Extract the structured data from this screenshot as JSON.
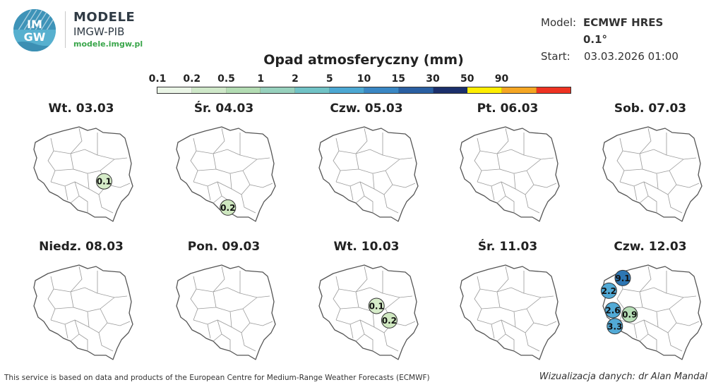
{
  "branding": {
    "logo_text": "IMGW",
    "name": "MODELE",
    "subtitle": "IMGW-PIB",
    "url": "modele.imgw.pl"
  },
  "model_info": {
    "model_label": "Model:",
    "model_value": "ECMWF HRES 0.1°",
    "start_label": "Start:",
    "start_value": "03.03.2026 01:00"
  },
  "legend": {
    "title": "Opad atmosferyczny (mm)",
    "ticks": [
      "0.1",
      "0.2",
      "0.5",
      "1",
      "2",
      "5",
      "10",
      "15",
      "30",
      "50",
      "90"
    ],
    "colors": [
      "#eaf5e6",
      "#cfe8c9",
      "#b3dcb3",
      "#97d1bd",
      "#71c3c6",
      "#4ca8d3",
      "#3a87c4",
      "#2a5fa2",
      "#1b2f6b",
      "#ffee00",
      "#f5a623",
      "#ee3322"
    ]
  },
  "panels": [
    {
      "title": "Wt. 03.03",
      "markers": [
        {
          "value": "0.1",
          "x": 0.71,
          "y": 0.56,
          "color": "#d6ecc9"
        }
      ]
    },
    {
      "title": "Śr. 04.03",
      "markers": [
        {
          "value": "0.2",
          "x": 0.52,
          "y": 0.87,
          "color": "#cfe8c0"
        }
      ]
    },
    {
      "title": "Czw. 05.03",
      "markers": []
    },
    {
      "title": "Pt. 06.03",
      "markers": []
    },
    {
      "title": "Sob. 07.03",
      "markers": []
    },
    {
      "title": "Niedz. 08.03",
      "markers": []
    },
    {
      "title": "Pon. 09.03",
      "markers": []
    },
    {
      "title": "Wt. 10.03",
      "markers": [
        {
          "value": "0.1",
          "x": 0.58,
          "y": 0.4,
          "color": "#d6ecc9"
        },
        {
          "value": "0.2",
          "x": 0.71,
          "y": 0.57,
          "color": "#cfe8c0"
        }
      ]
    },
    {
      "title": "Śr. 11.03",
      "markers": []
    },
    {
      "title": "Czw. 12.03",
      "markers": [
        {
          "value": "9.1",
          "x": 0.2,
          "y": 0.07,
          "color": "#2d76b3"
        },
        {
          "value": "2.2",
          "x": 0.06,
          "y": 0.22,
          "color": "#52aad6"
        },
        {
          "value": "2.6",
          "x": 0.1,
          "y": 0.45,
          "color": "#52aad6"
        },
        {
          "value": "0.9",
          "x": 0.27,
          "y": 0.5,
          "color": "#b7dfb7"
        },
        {
          "value": "3.3",
          "x": 0.12,
          "y": 0.64,
          "color": "#52aad6"
        }
      ]
    }
  ],
  "footer": {
    "left": "This service is based on data and products of the European Centre for Medium-Range Weather Forecasts (ECMWF)",
    "right": "Wizualizacja danych: dr Alan Mandal"
  }
}
